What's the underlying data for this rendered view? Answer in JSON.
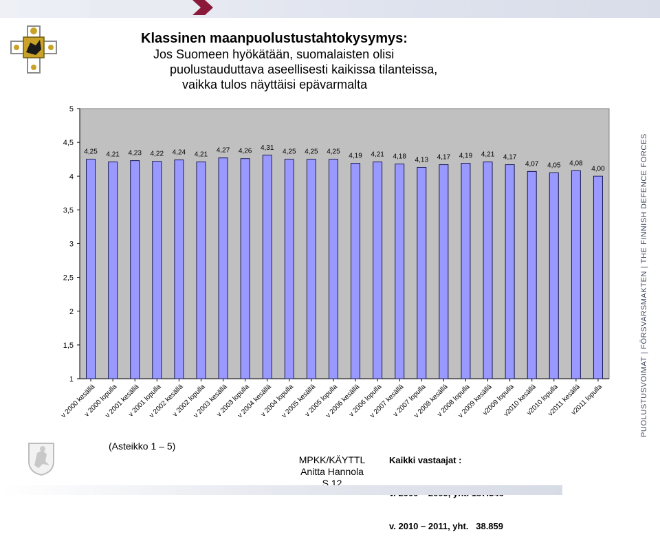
{
  "title": {
    "line1": "Klassinen maanpuolustustahtokysymys:",
    "line2": "Jos Suomeen hyökätään, suomalaisten olisi",
    "line3": "puolustauduttava aseellisesti kaikissa tilanteissa,",
    "line4": "vaikka tulos näyttäisi epävarmalta"
  },
  "branding": {
    "vertical_text": "PUOLUSTUSVOIMAT  |  FÖRSVARSMAKTEN  |  THE FINNISH DEFENCE FORCES"
  },
  "footer": {
    "scale_note": "(Asteikko 1 – 5)",
    "org": "MPKK/KÄYTTL",
    "author": "Anitta Hannola",
    "page": "S.12",
    "totals_title": "Kaikki vastaajat :",
    "totals_line1": "v. 2000 – 2009, yht. 187.346",
    "totals_line2": "v. 2010 – 2011, yht.   38.859"
  },
  "colors": {
    "bar_fill": "#9999ff",
    "bar_stroke": "#1a1a55",
    "plot_bg": "#c0c0c0",
    "arrow": "#8b1a3a"
  },
  "icons": [
    "crest-icon",
    "lion-emblem-icon",
    "arrow-icon"
  ],
  "chart_data": {
    "type": "bar",
    "categories": [
      "v 2000 kesällä",
      "v 2000 lopulla",
      "v 2001 kesällä",
      "v 2001 lopulla",
      "v 2002 kesällä",
      "v 2002 lopulla",
      "v 2003 kesällä",
      "v 2003 lopulla",
      "v 2004 kesällä",
      "v 2004 lopulla",
      "v 2005 kesällä",
      "v 2005 lopulla",
      "v 2006 kesällä",
      "v 2006 lopulla",
      "v 2007 kesällä",
      "v 2007 lopulla",
      "v 2008 kesällä",
      "v 2008 lopulla",
      "v 2009 kesällä",
      "v2009 lopulla",
      "v2010 kesällä",
      "v2010 lopulla",
      "v2011 kesällä",
      "v2011 lopulla"
    ],
    "values": [
      4.25,
      4.21,
      4.23,
      4.22,
      4.24,
      4.21,
      4.27,
      4.26,
      4.31,
      4.25,
      4.25,
      4.25,
      4.19,
      4.21,
      4.18,
      4.13,
      4.17,
      4.19,
      4.21,
      4.17,
      4.07,
      4.05,
      4.08,
      4.0
    ],
    "value_labels": [
      "4,25",
      "4,21",
      "4,23",
      "4,22",
      "4,24",
      "4,21",
      "4,27",
      "4,26",
      "4,31",
      "4,25",
      "4,25",
      "4,25",
      "4,19",
      "4,21",
      "4,18",
      "4,13",
      "4,17",
      "4,19",
      "4,21",
      "4,17",
      "4,07",
      "4,05",
      "4,08",
      "4,00"
    ],
    "ylim": [
      1,
      5
    ],
    "yticks": [
      1,
      1.5,
      2,
      2.5,
      3,
      3.5,
      4,
      4.5,
      5
    ],
    "ytick_labels": [
      "1",
      "1,5",
      "2",
      "2,5",
      "3",
      "3,5",
      "4",
      "4,5",
      "5"
    ],
    "grid": false,
    "legend": "none"
  }
}
